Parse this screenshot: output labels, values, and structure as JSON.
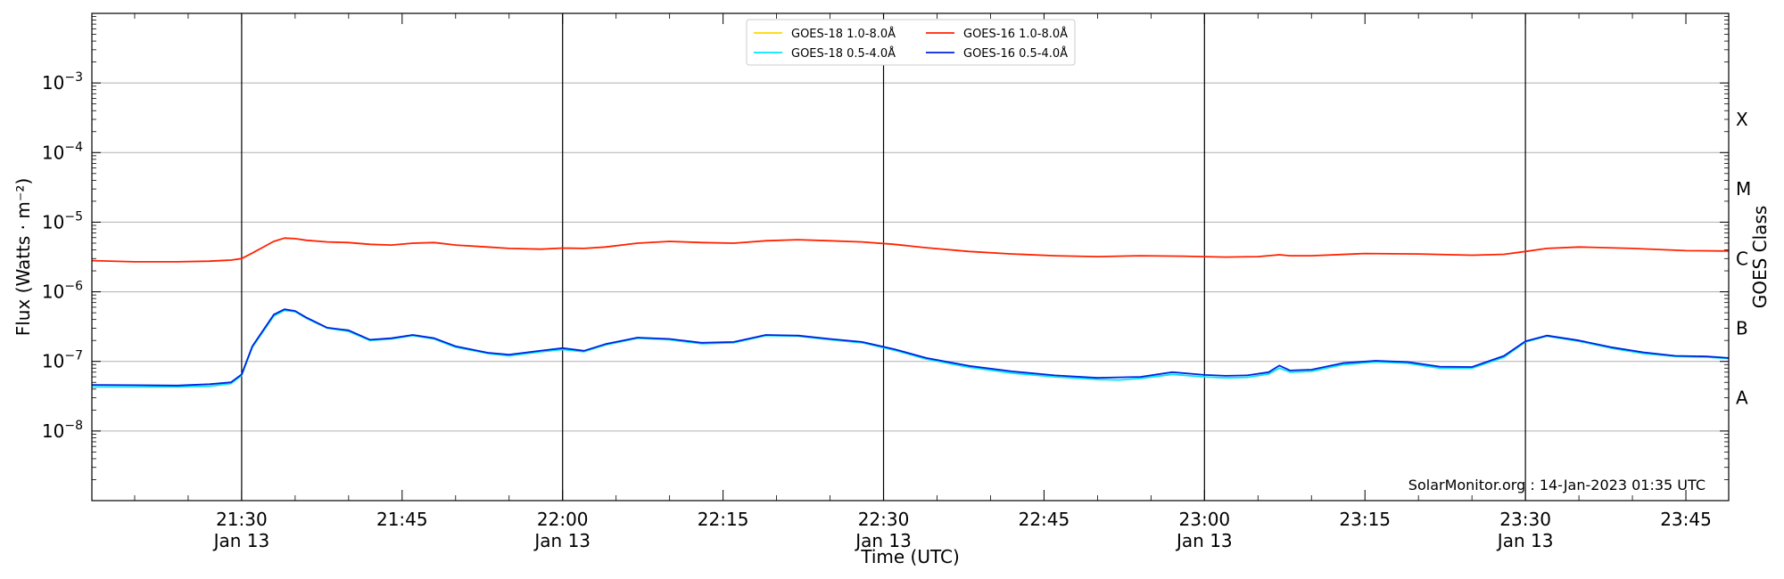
{
  "chart_data": {
    "type": "line",
    "xlabel": "Time (UTC)",
    "ylabel": "Flux (Watts · m⁻²)",
    "right_label": "GOES Class",
    "credit": "SolarMonitor.org : 14-Jan-2023 01:35 UTC",
    "x_range": [
      "2023-01-13 21:16",
      "2023-01-13 23:49"
    ],
    "ylim": [
      1e-09,
      0.01
    ],
    "yscale": "log",
    "y_ticks": [
      {
        "value": 1e-08,
        "base": "10",
        "exp": "−8"
      },
      {
        "value": 1e-07,
        "base": "10",
        "exp": "−7"
      },
      {
        "value": 1e-06,
        "base": "10",
        "exp": "−6"
      },
      {
        "value": 1e-05,
        "base": "10",
        "exp": "−5"
      },
      {
        "value": 0.0001,
        "base": "10",
        "exp": "−4"
      },
      {
        "value": 0.001,
        "base": "10",
        "exp": "−3"
      }
    ],
    "x_ticks": [
      {
        "time": "21:30",
        "label": "21:30",
        "sub": "Jan 13",
        "major": true
      },
      {
        "time": "21:45",
        "label": "21:45",
        "sub": "",
        "major": false
      },
      {
        "time": "22:00",
        "label": "22:00",
        "sub": "Jan 13",
        "major": true
      },
      {
        "time": "22:15",
        "label": "22:15",
        "sub": "",
        "major": false
      },
      {
        "time": "22:30",
        "label": "22:30",
        "sub": "Jan 13",
        "major": true
      },
      {
        "time": "22:45",
        "label": "22:45",
        "sub": "",
        "major": false
      },
      {
        "time": "23:00",
        "label": "23:00",
        "sub": "Jan 13",
        "major": true
      },
      {
        "time": "23:15",
        "label": "23:15",
        "sub": "",
        "major": false
      },
      {
        "time": "23:30",
        "label": "23:30",
        "sub": "Jan 13",
        "major": true
      },
      {
        "time": "23:45",
        "label": "23:45",
        "sub": "",
        "major": false
      }
    ],
    "classes": [
      {
        "label": "A",
        "value": 3e-08
      },
      {
        "label": "B",
        "value": 3e-07
      },
      {
        "label": "C",
        "value": 3e-06
      },
      {
        "label": "M",
        "value": 3e-05
      },
      {
        "label": "X",
        "value": 0.0003
      }
    ],
    "grid": true,
    "legend_position": "top-center",
    "series": [
      {
        "name": "GOES-18 1.0-8.0Å",
        "color": "#ffd700",
        "x": [],
        "values": []
      },
      {
        "name": "GOES-18 0.5-4.0Å",
        "color": "#00e5ff",
        "x": [
          "21:16",
          "21:20",
          "21:24",
          "21:27",
          "21:29",
          "21:30",
          "21:31",
          "21:33",
          "21:34",
          "21:35",
          "21:36",
          "21:38",
          "21:40",
          "21:42",
          "21:44",
          "21:46",
          "21:48",
          "21:50",
          "21:53",
          "21:55",
          "21:58",
          "22:00",
          "22:02",
          "22:04",
          "22:07",
          "22:10",
          "22:13",
          "22:16",
          "22:19",
          "22:22",
          "22:25",
          "22:28",
          "22:31",
          "22:34",
          "22:38",
          "22:42",
          "22:46",
          "22:50",
          "22:52",
          "22:54",
          "22:57",
          "23:00",
          "23:02",
          "23:04",
          "23:06",
          "23:07",
          "23:08",
          "23:10",
          "23:13",
          "23:16",
          "23:19",
          "23:22",
          "23:25",
          "23:28",
          "23:30",
          "23:32",
          "23:35",
          "23:38",
          "23:41",
          "23:44",
          "23:47",
          "23:49"
        ],
        "values": [
          4.3e-08,
          4.3e-08,
          4.3e-08,
          4.4e-08,
          4.8e-08,
          6.3e-08,
          1.6e-07,
          4.5e-07,
          5.4e-07,
          5.2e-07,
          4.2e-07,
          3e-07,
          2.7e-07,
          2e-07,
          2.1e-07,
          2.35e-07,
          2.1e-07,
          1.6e-07,
          1.3e-07,
          1.2e-07,
          1.38e-07,
          1.48e-07,
          1.38e-07,
          1.72e-07,
          2.15e-07,
          2.05e-07,
          1.8e-07,
          1.85e-07,
          2.35e-07,
          2.3e-07,
          2.05e-07,
          1.85e-07,
          1.45e-07,
          1.08e-07,
          8.2e-08,
          6.8e-08,
          6e-08,
          5.5e-08,
          5.4e-08,
          5.7e-08,
          6.5e-08,
          6e-08,
          5.8e-08,
          5.9e-08,
          6.6e-08,
          8e-08,
          7e-08,
          7.2e-08,
          9e-08,
          9.8e-08,
          9.4e-08,
          8e-08,
          8e-08,
          1.15e-07,
          1.9e-07,
          2.3e-07,
          1.95e-07,
          1.55e-07,
          1.3e-07,
          1.18e-07,
          1.15e-07,
          1.1e-07
        ]
      },
      {
        "name": "GOES-16 1.0-8.0Å",
        "color": "#ff2200",
        "x": [
          "21:16",
          "21:20",
          "21:24",
          "21:27",
          "21:29",
          "21:30",
          "21:31",
          "21:33",
          "21:34",
          "21:35",
          "21:36",
          "21:38",
          "21:40",
          "21:42",
          "21:44",
          "21:46",
          "21:48",
          "21:50",
          "21:53",
          "21:55",
          "21:58",
          "22:00",
          "22:02",
          "22:04",
          "22:07",
          "22:10",
          "22:13",
          "22:16",
          "22:19",
          "22:22",
          "22:25",
          "22:28",
          "22:31",
          "22:34",
          "22:38",
          "22:42",
          "22:46",
          "22:50",
          "22:54",
          "22:58",
          "23:02",
          "23:05",
          "23:07",
          "23:08",
          "23:10",
          "23:15",
          "23:20",
          "23:25",
          "23:28",
          "23:30",
          "23:32",
          "23:35",
          "23:40",
          "23:45",
          "23:49"
        ],
        "values": [
          2.8e-06,
          2.7e-06,
          2.7e-06,
          2.75e-06,
          2.85e-06,
          3e-06,
          3.6e-06,
          5.3e-06,
          5.9e-06,
          5.8e-06,
          5.5e-06,
          5.2e-06,
          5.1e-06,
          4.8e-06,
          4.7e-06,
          5e-06,
          5.1e-06,
          4.7e-06,
          4.4e-06,
          4.2e-06,
          4.1e-06,
          4.25e-06,
          4.2e-06,
          4.4e-06,
          5e-06,
          5.3e-06,
          5.1e-06,
          5e-06,
          5.4e-06,
          5.6e-06,
          5.4e-06,
          5.2e-06,
          4.8e-06,
          4.3e-06,
          3.8e-06,
          3.5e-06,
          3.3e-06,
          3.2e-06,
          3.3e-06,
          3.25e-06,
          3.15e-06,
          3.2e-06,
          3.4e-06,
          3.3e-06,
          3.3e-06,
          3.55e-06,
          3.5e-06,
          3.35e-06,
          3.45e-06,
          3.8e-06,
          4.2e-06,
          4.4e-06,
          4.2e-06,
          3.9e-06,
          3.85e-06
        ]
      },
      {
        "name": "GOES-16 0.5-4.0Å",
        "color": "#0022dd",
        "x": [
          "21:16",
          "21:20",
          "21:24",
          "21:27",
          "21:29",
          "21:30",
          "21:31",
          "21:33",
          "21:34",
          "21:35",
          "21:36",
          "21:38",
          "21:40",
          "21:42",
          "21:44",
          "21:46",
          "21:48",
          "21:50",
          "21:53",
          "21:55",
          "21:58",
          "22:00",
          "22:02",
          "22:04",
          "22:07",
          "22:10",
          "22:13",
          "22:16",
          "22:19",
          "22:22",
          "22:25",
          "22:28",
          "22:31",
          "22:34",
          "22:38",
          "22:42",
          "22:46",
          "22:50",
          "22:52",
          "22:54",
          "22:57",
          "23:00",
          "23:02",
          "23:04",
          "23:06",
          "23:07",
          "23:08",
          "23:10",
          "23:13",
          "23:16",
          "23:19",
          "23:22",
          "23:25",
          "23:28",
          "23:30",
          "23:32",
          "23:35",
          "23:38",
          "23:41",
          "23:44",
          "23:47",
          "23:49"
        ],
        "values": [
          4.6e-08,
          4.55e-08,
          4.5e-08,
          4.7e-08,
          5e-08,
          6.5e-08,
          1.65e-07,
          4.7e-07,
          5.6e-07,
          5.3e-07,
          4.3e-07,
          3.05e-07,
          2.8e-07,
          2.05e-07,
          2.15e-07,
          2.4e-07,
          2.15e-07,
          1.65e-07,
          1.33e-07,
          1.25e-07,
          1.43e-07,
          1.55e-07,
          1.42e-07,
          1.77e-07,
          2.2e-07,
          2.1e-07,
          1.85e-07,
          1.9e-07,
          2.4e-07,
          2.35e-07,
          2.1e-07,
          1.9e-07,
          1.5e-07,
          1.12e-07,
          8.6e-08,
          7.2e-08,
          6.3e-08,
          5.8e-08,
          5.9e-08,
          6e-08,
          7e-08,
          6.4e-08,
          6.2e-08,
          6.3e-08,
          7e-08,
          8.7e-08,
          7.4e-08,
          7.6e-08,
          9.5e-08,
          1.02e-07,
          9.8e-08,
          8.4e-08,
          8.3e-08,
          1.2e-07,
          1.95e-07,
          2.35e-07,
          2e-07,
          1.6e-07,
          1.35e-07,
          1.2e-07,
          1.18e-07,
          1.12e-07
        ]
      }
    ]
  }
}
